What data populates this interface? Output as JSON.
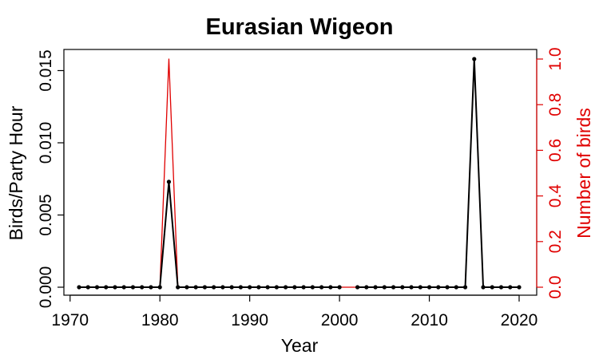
{
  "chart_data": {
    "type": "line",
    "title": "Eurasian Wigeon",
    "xlabel": "Year",
    "ylabel": "Birds/Party Hour",
    "y2label": "Number of birds",
    "xlim": [
      1971,
      2020
    ],
    "ylim": [
      0,
      0.0158
    ],
    "y2lim": [
      0,
      1.0
    ],
    "x_ticks": [
      1970,
      1980,
      1990,
      2000,
      2010,
      2020
    ],
    "x_tick_labels": [
      "1970",
      "1980",
      "1990",
      "2000",
      "2010",
      "2020"
    ],
    "y_ticks": [
      0.0,
      0.005,
      0.01,
      0.015
    ],
    "y_tick_labels": [
      "0.000",
      "0.005",
      "0.010",
      "0.015"
    ],
    "y2_ticks": [
      0.0,
      0.2,
      0.4,
      0.6,
      0.8,
      1.0
    ],
    "y2_tick_labels": [
      "0.0",
      "0.2",
      "0.4",
      "0.6",
      "0.8",
      "1.0"
    ],
    "grid": false,
    "legend": "none",
    "x": [
      1971,
      1972,
      1973,
      1974,
      1975,
      1976,
      1977,
      1978,
      1979,
      1980,
      1981,
      1982,
      1983,
      1984,
      1985,
      1986,
      1987,
      1988,
      1989,
      1990,
      1991,
      1992,
      1993,
      1994,
      1995,
      1996,
      1997,
      1998,
      1999,
      2000,
      2001,
      2002,
      2003,
      2004,
      2005,
      2006,
      2007,
      2008,
      2009,
      2010,
      2011,
      2012,
      2013,
      2014,
      2015,
      2016,
      2017,
      2018,
      2019,
      2020
    ],
    "series": [
      {
        "axis": "left",
        "color": "#000000",
        "markers": true,
        "values": [
          0,
          0,
          0,
          0,
          0,
          0,
          0,
          0,
          0,
          0,
          0.0073,
          0,
          0,
          0,
          0,
          0,
          0,
          0,
          0,
          0,
          0,
          0,
          0,
          0,
          0,
          0,
          0,
          0,
          0,
          0,
          null,
          0,
          0,
          0,
          0,
          0,
          0,
          0,
          0,
          0,
          0,
          0,
          0,
          0,
          0.0158,
          0,
          0,
          0,
          0,
          0
        ]
      },
      {
        "axis": "right",
        "color": "#e00000",
        "markers": false,
        "values": [
          0,
          0,
          0,
          0,
          0,
          0,
          0,
          0,
          0,
          0,
          1,
          0,
          0,
          0,
          0,
          0,
          0,
          0,
          0,
          0,
          0,
          0,
          0,
          0,
          0,
          0,
          0,
          0,
          0,
          0,
          0,
          0,
          0,
          0,
          0,
          0,
          0,
          0,
          0,
          0,
          0,
          0,
          0,
          0,
          1,
          0,
          0,
          0,
          0,
          0
        ]
      }
    ]
  }
}
